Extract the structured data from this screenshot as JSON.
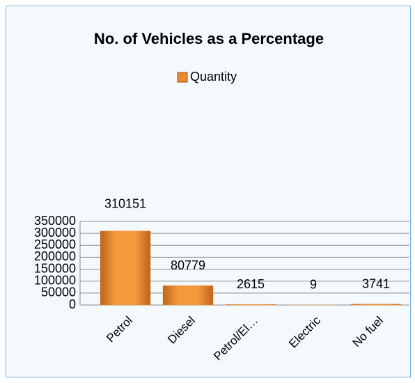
{
  "chart_data": {
    "type": "bar",
    "title": "No. of Vehicles as a Percentage",
    "categories": [
      "Petrol",
      "Diesel",
      "Petrol/El…",
      "Electric",
      "No fuel"
    ],
    "series": [
      {
        "name": "Quantity",
        "color": "#e8892a",
        "values": [
          310151,
          80779,
          2615,
          9,
          3741
        ]
      }
    ],
    "ylim": [
      0,
      350000
    ],
    "yticks": [
      0,
      50000,
      100000,
      150000,
      200000,
      250000,
      300000,
      350000
    ],
    "grid": true,
    "legend": "top"
  }
}
